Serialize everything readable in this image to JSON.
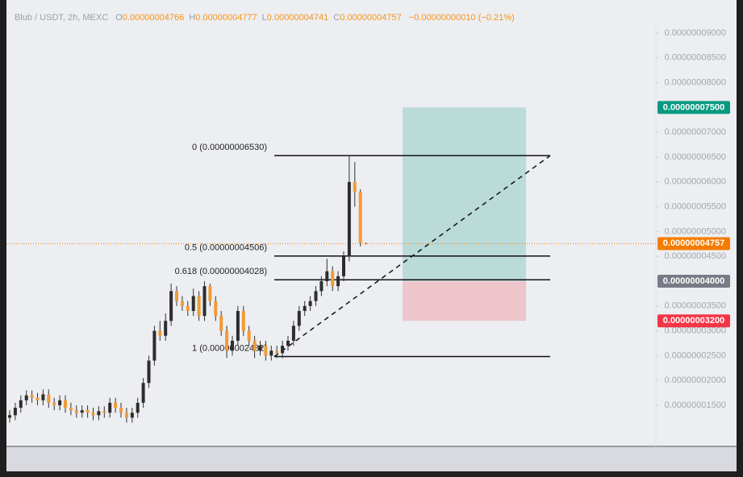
{
  "header": {
    "symbol": "Blub / USDT, 2h, MEXC",
    "fields": [
      {
        "key": "O",
        "value": "0.00000004766"
      },
      {
        "key": "H",
        "value": "0.00000004777"
      },
      {
        "key": "L",
        "value": "0.00000004741"
      },
      {
        "key": "C",
        "value": "0.00000004757"
      }
    ],
    "change": "−0.00000000010 (−0.21%)"
  },
  "chart_data": {
    "type": "candlestick",
    "up_color": "#2d2d2d",
    "down_color": "#f39a35",
    "ylim": [
      6.88e-09,
      9.178e-08
    ],
    "yticks": [
      {
        "value": 9e-08,
        "label": "0.00000009000"
      },
      {
        "value": 8.5e-08,
        "label": "0.00000008500"
      },
      {
        "value": 8e-08,
        "label": "0.00000008000"
      },
      {
        "value": 7e-08,
        "label": "0.00000007000"
      },
      {
        "value": 6.5e-08,
        "label": "0.00000006500"
      },
      {
        "value": 6e-08,
        "label": "0.00000006000"
      },
      {
        "value": 5.5e-08,
        "label": "0.00000005500"
      },
      {
        "value": 5e-08,
        "label": "0.00000005000"
      },
      {
        "value": 4.5e-08,
        "label": "0.00000004500"
      },
      {
        "value": 3.5e-08,
        "label": "0.00000003500"
      },
      {
        "value": 3e-08,
        "label": "0.00000003000"
      },
      {
        "value": 2.5e-08,
        "label": "0.00000002500"
      },
      {
        "value": 2e-08,
        "label": "0.00000002000"
      },
      {
        "value": 1.5e-08,
        "label": "0.00000001500"
      }
    ],
    "open": [
      1.25e-08,
      1.3e-08,
      1.45e-08,
      1.6e-08,
      1.7e-08,
      1.65e-08,
      1.6e-08,
      1.72e-08,
      1.55e-08,
      1.5e-08,
      1.6e-08,
      1.45e-08,
      1.4e-08,
      1.35e-08,
      1.4e-08,
      1.35e-08,
      1.3e-08,
      1.38e-08,
      1.35e-08,
      1.55e-08,
      1.45e-08,
      1.35e-08,
      1.25e-08,
      1.35e-08,
      1.55e-08,
      1.95e-08,
      2.4e-08,
      3e-08,
      2.9e-08,
      3.2e-08,
      3.8e-08,
      3.6e-08,
      3.5e-08,
      3.4e-08,
      3.7e-08,
      3.3e-08,
      3.9e-08,
      3.6e-08,
      3.3e-08,
      3e-08,
      2.6e-08,
      2.8e-08,
      3.4e-08,
      3e-08,
      2.8e-08,
      2.6e-08,
      2.7e-08,
      2.5e-08,
      2.6e-08,
      2.55e-08,
      2.7e-08,
      2.8e-08,
      3.1e-08,
      3.4e-08,
      3.5e-08,
      3.6e-08,
      3.8e-08,
      4e-08,
      4.2e-08,
      3.9e-08,
      4.1e-08,
      4.5e-08,
      6e-08,
      5.8e-08,
      4.766e-08
    ],
    "high": [
      1.4e-08,
      1.55e-08,
      1.7e-08,
      1.8e-08,
      1.8e-08,
      1.75e-08,
      1.82e-08,
      1.82e-08,
      1.65e-08,
      1.7e-08,
      1.7e-08,
      1.55e-08,
      1.5e-08,
      1.5e-08,
      1.5e-08,
      1.45e-08,
      1.48e-08,
      1.48e-08,
      1.65e-08,
      1.65e-08,
      1.55e-08,
      1.45e-08,
      1.45e-08,
      1.65e-08,
      2.05e-08,
      2.5e-08,
      3.1e-08,
      3.2e-08,
      3.35e-08,
      3.95e-08,
      3.9e-08,
      3.7e-08,
      3.6e-08,
      3.85e-08,
      3.8e-08,
      4e-08,
      3.95e-08,
      3.7e-08,
      3.4e-08,
      3.1e-08,
      2.9e-08,
      3.5e-08,
      3.5e-08,
      3.1e-08,
      2.9e-08,
      2.8e-08,
      2.8e-08,
      2.7e-08,
      2.7e-08,
      2.8e-08,
      2.9e-08,
      3.2e-08,
      3.5e-08,
      3.6e-08,
      3.7e-08,
      3.9e-08,
      4.1e-08,
      4.45e-08,
      4.3e-08,
      4.2e-08,
      4.6e-08,
      6.53e-08,
      6.4e-08,
      5.85e-08,
      4.777e-08
    ],
    "low": [
      1.15e-08,
      1.2e-08,
      1.35e-08,
      1.5e-08,
      1.55e-08,
      1.5e-08,
      1.5e-08,
      1.45e-08,
      1.4e-08,
      1.4e-08,
      1.35e-08,
      1.3e-08,
      1.25e-08,
      1.25e-08,
      1.25e-08,
      1.2e-08,
      1.2e-08,
      1.25e-08,
      1.25e-08,
      1.35e-08,
      1.25e-08,
      1.15e-08,
      1.15e-08,
      1.25e-08,
      1.45e-08,
      1.85e-08,
      2.3e-08,
      2.8e-08,
      2.8e-08,
      3.1e-08,
      3.5e-08,
      3.4e-08,
      3.3e-08,
      3.3e-08,
      3.2e-08,
      3.2e-08,
      3.5e-08,
      3.2e-08,
      2.9e-08,
      2.45e-08,
      2.5e-08,
      2.7e-08,
      2.9e-08,
      2.7e-08,
      2.45e-08,
      2.5e-08,
      2.4e-08,
      2.4e-08,
      2.45e-08,
      2.45e-08,
      2.6e-08,
      2.7e-08,
      3e-08,
      3.3e-08,
      3.4e-08,
      3.5e-08,
      3.7e-08,
      3.9e-08,
      3.8e-08,
      3.8e-08,
      4e-08,
      4.4e-08,
      5.5e-08,
      4.7e-08,
      4.741e-08
    ],
    "close": [
      1.3e-08,
      1.45e-08,
      1.6e-08,
      1.7e-08,
      1.65e-08,
      1.6e-08,
      1.72e-08,
      1.55e-08,
      1.5e-08,
      1.6e-08,
      1.45e-08,
      1.4e-08,
      1.35e-08,
      1.4e-08,
      1.35e-08,
      1.3e-08,
      1.38e-08,
      1.35e-08,
      1.55e-08,
      1.45e-08,
      1.35e-08,
      1.25e-08,
      1.35e-08,
      1.55e-08,
      1.95e-08,
      2.4e-08,
      3e-08,
      2.9e-08,
      3.2e-08,
      3.8e-08,
      3.6e-08,
      3.5e-08,
      3.4e-08,
      3.7e-08,
      3.3e-08,
      3.9e-08,
      3.6e-08,
      3.3e-08,
      3e-08,
      2.6e-08,
      2.8e-08,
      3.4e-08,
      3e-08,
      2.8e-08,
      2.6e-08,
      2.7e-08,
      2.5e-08,
      2.6e-08,
      2.55e-08,
      2.7e-08,
      2.8e-08,
      3.1e-08,
      3.4e-08,
      3.5e-08,
      3.6e-08,
      3.8e-08,
      4e-08,
      4.2e-08,
      3.9e-08,
      4.1e-08,
      4.5e-08,
      6e-08,
      5.8e-08,
      4.77e-08,
      4.757e-08
    ],
    "last_price": {
      "value": 4.757e-08,
      "label": "0.00000004757",
      "color": "#f57c00"
    },
    "fib_levels": [
      {
        "value": 6.53e-08,
        "label": "0 (0.00000006530)"
      },
      {
        "value": 4.506e-08,
        "label": "0.5 (0.00000004506)"
      },
      {
        "value": 4.028e-08,
        "label": "0.618 (0.00000004028)"
      },
      {
        "value": 2.482e-08,
        "label": "1 (0.00000002482)"
      }
    ],
    "position": {
      "target": {
        "value": 7.5e-08,
        "label": "0.00000007500",
        "color": "#089981"
      },
      "entry": {
        "value": 4e-08,
        "label": "0.00000004000",
        "color": "#787b86"
      },
      "stop": {
        "value": 3.2e-08,
        "label": "0.00000003200",
        "color": "#f23645"
      }
    }
  }
}
